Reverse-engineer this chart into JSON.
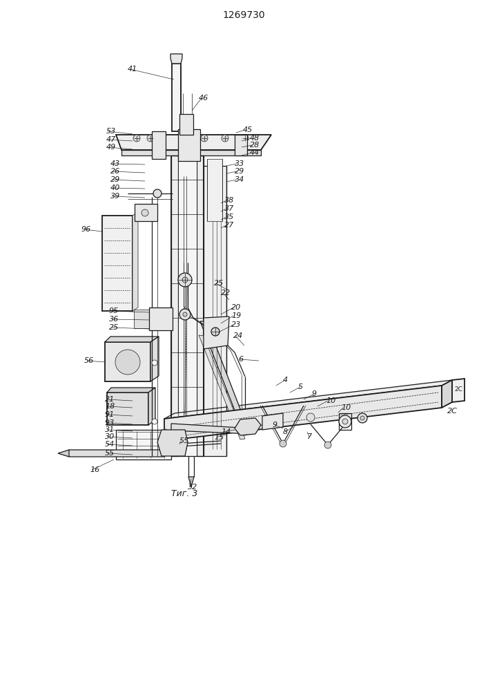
{
  "title": "1269730",
  "fig_label": "Τиг. 3",
  "bg_color": "#ffffff",
  "line_color": "#1a1a1a",
  "title_fontsize": 10,
  "label_fontsize": 8,
  "fig_label_fontsize": 9
}
